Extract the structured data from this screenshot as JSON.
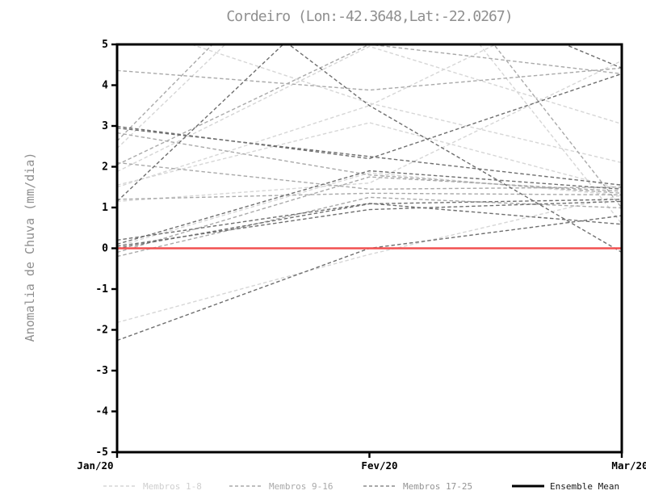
{
  "title": "Cordeiro (Lon:-42.3648,Lat:-22.0267)",
  "y_axis": {
    "label": "Anomalia de Chuva (mm/dia)",
    "ticks": [
      "5",
      "4",
      "3",
      "2",
      "1",
      "0",
      "-1",
      "-2",
      "-3",
      "-4",
      "-5"
    ],
    "tick_values": [
      5,
      4,
      3,
      2,
      1,
      0,
      -1,
      -2,
      -3,
      -4,
      -5
    ]
  },
  "x_axis": {
    "ticks": [
      "Jan/20",
      "Fev/20",
      "Mar/20"
    ]
  },
  "legend": {
    "items": [
      {
        "label": "Membros 1-8",
        "color": "#d6d6d6",
        "text_color": "#cfcfcf",
        "style": "dashed"
      },
      {
        "label": "Membros 9-16",
        "color": "#a9a9a9",
        "text_color": "#a9a9a9",
        "style": "dashed"
      },
      {
        "label": "Membros 17-25",
        "color": "#8c8c8c",
        "text_color": "#949494",
        "style": "dashed"
      },
      {
        "label": "Ensemble Mean",
        "color": "#000000",
        "text_color": "#1a1a1a",
        "style": "solid"
      }
    ]
  },
  "chart_data": {
    "type": "line",
    "title": "Cordeiro (Lon:-42.3648,Lat:-22.0267)",
    "xlabel": "",
    "ylabel": "Anomalia de Chuva (mm/dia)",
    "categories": [
      "Jan/20",
      "Fev/20",
      "Mar/20"
    ],
    "ylim": [
      -5,
      5
    ],
    "grid": false,
    "legend_position": "bottom",
    "zero_line_color": "#f25050",
    "groups": [
      {
        "name": "Membros 1-8",
        "color": "#d6d6d6",
        "members": [
          [
            1.55,
            3.08,
            1.45
          ],
          [
            1.5,
            3.5,
            6.5
          ],
          [
            2.45,
            8.4,
            0.6
          ],
          [
            5.6,
            3.56,
            2.1
          ],
          [
            -1.82,
            -0.15,
            1.3
          ],
          [
            1.88,
            4.95,
            3.05
          ],
          [
            0.05,
            1.85,
            1.3
          ],
          [
            1.15,
            1.6,
            4.6
          ]
        ]
      },
      {
        "name": "Membros 9-16",
        "color": "#a9a9a9",
        "members": [
          [
            4.36,
            3.88,
            4.42
          ],
          [
            2.63,
            8.9,
            0.99
          ],
          [
            2.83,
            1.8,
            1.35
          ],
          [
            2.1,
            1.45,
            1.5
          ],
          [
            2.05,
            5.0,
            4.28
          ],
          [
            -0.1,
            1.75,
            1.4
          ],
          [
            -0.2,
            1.25,
            0.99
          ],
          [
            1.2,
            1.35,
            1.31
          ]
        ]
      },
      {
        "name": "Membros 17-25",
        "color": "#6e6e6e",
        "members": [
          [
            1.15,
            7.0,
            4.42
          ],
          [
            8.2,
            3.5,
            -0.1
          ],
          [
            -2.26,
            0.0,
            0.8
          ],
          [
            2.99,
            2.2,
            4.28
          ],
          [
            2.95,
            2.25,
            1.55
          ],
          [
            0.1,
            1.9,
            1.45
          ],
          [
            0.2,
            1.1,
            0.59
          ],
          [
            0.0,
            1.09,
            1.2
          ],
          [
            0.05,
            0.95,
            1.15
          ]
        ]
      }
    ],
    "ensemble_mean": {
      "name": "Ensemble Mean",
      "drawn_color": "#f25050",
      "values": [
        0.0,
        0.0,
        0.0
      ]
    }
  }
}
